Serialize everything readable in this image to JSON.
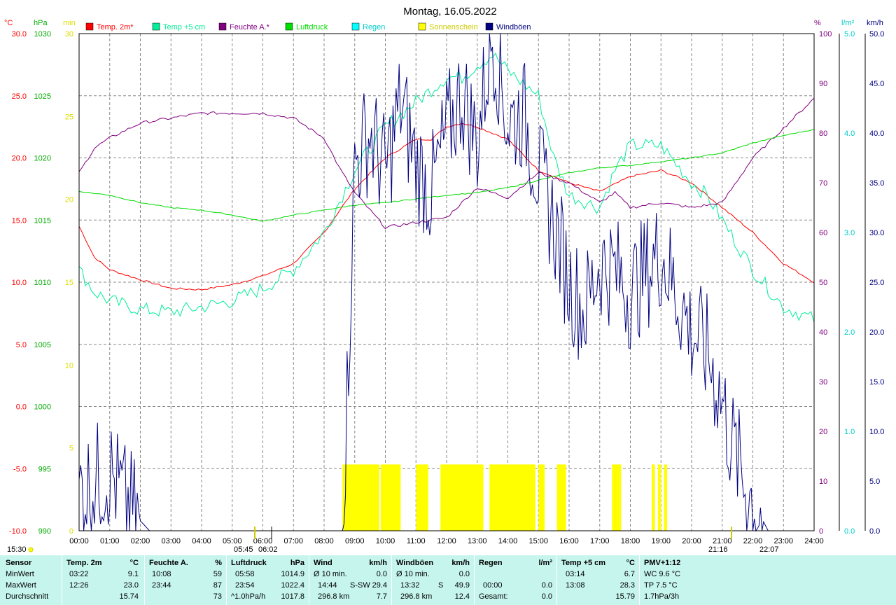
{
  "title": "Montag, 16.05.2022",
  "legend": [
    {
      "label": "Temp. 2m*",
      "color": "#ff0000"
    },
    {
      "label": "Temp +5 cm",
      "color": "#00ee99"
    },
    {
      "label": "Feuchte A.*",
      "color": "#800080"
    },
    {
      "label": "Luftdruck",
      "color": "#00dd00"
    },
    {
      "label": "Regen",
      "color": "#00ffff"
    },
    {
      "label": "Sonnenschein",
      "color": "#ffff00"
    },
    {
      "label": "Windböen",
      "color": "#000080"
    }
  ],
  "axes": {
    "temp": {
      "unit": "°C",
      "ticks": [
        "30.0",
        "25.0",
        "20.0",
        "15.0",
        "10.0",
        "5.0",
        "0.0",
        "-5.0",
        "-10.0"
      ],
      "color": "#ff0000"
    },
    "pressure": {
      "unit": "hPa",
      "ticks": [
        "1030",
        "1025",
        "1020",
        "1015",
        "1010",
        "1005",
        "1000",
        "995",
        "990"
      ],
      "color": "#00aa00"
    },
    "sunshine": {
      "unit": "min",
      "ticks": [
        "30",
        "25",
        "20",
        "15",
        "10",
        "5",
        "0"
      ],
      "color": "#dddd00"
    },
    "humidity": {
      "unit": "%",
      "ticks": [
        "100",
        "90",
        "80",
        "70",
        "60",
        "50",
        "40",
        "30",
        "20",
        "10",
        "0"
      ],
      "color": "#800080"
    },
    "rain": {
      "unit": "l/m²",
      "ticks": [
        "5.0",
        "4.0",
        "3.0",
        "2.0",
        "1.0",
        "0.0"
      ],
      "color": "#00cccc"
    },
    "wind": {
      "unit": "km/h",
      "ticks": [
        "50.0",
        "45.0",
        "40.0",
        "35.0",
        "30.0",
        "25.0",
        "20.0",
        "15.0",
        "10.0",
        "5.0",
        "0.0"
      ],
      "color": "#000080"
    },
    "time_ticks": [
      "00:00",
      "01:00",
      "02:00",
      "03:00",
      "04:00",
      "05:00",
      "06:00",
      "07:00",
      "08:00",
      "09:00",
      "10:00",
      "11:00",
      "12:00",
      "13:00",
      "14:00",
      "15:00",
      "16:00",
      "17:00",
      "18:00",
      "19:00",
      "20:00",
      "21:00",
      "22:00",
      "23:00",
      "24:00"
    ]
  },
  "markers": {
    "left_time": "15:30",
    "sunrise": "05:45",
    "sunrise_b": "06:02",
    "sunset_a": "21:16",
    "sunset_b": "22:07"
  },
  "chart_data": {
    "type": "line",
    "x_unit": "hour",
    "xlim": [
      0,
      24
    ],
    "series": [
      {
        "name": "Temp. 2m*",
        "axis": "temp",
        "color": "#ff0000",
        "points": [
          [
            0,
            14.5
          ],
          [
            0.5,
            12.0
          ],
          [
            1,
            11.0
          ],
          [
            2,
            10.2
          ],
          [
            3,
            9.5
          ],
          [
            4,
            9.4
          ],
          [
            5,
            9.8
          ],
          [
            6,
            10.5
          ],
          [
            7,
            11.5
          ],
          [
            8,
            14.0
          ],
          [
            9,
            17.5
          ],
          [
            10,
            20.0
          ],
          [
            11,
            21.5
          ],
          [
            11.5,
            21.5
          ],
          [
            12,
            22.5
          ],
          [
            12.5,
            22.8
          ],
          [
            13,
            22.5
          ],
          [
            14,
            21.5
          ],
          [
            15,
            19.0
          ],
          [
            16,
            18.0
          ],
          [
            17,
            17.3
          ],
          [
            18,
            18.5
          ],
          [
            19,
            19.0
          ],
          [
            20,
            18.0
          ],
          [
            21,
            16.0
          ],
          [
            22,
            14.0
          ],
          [
            23,
            11.5
          ],
          [
            24,
            10.0
          ]
        ]
      },
      {
        "name": "Temp +5 cm",
        "axis": "temp",
        "color": "#00ee99",
        "points": [
          [
            0,
            11.0
          ],
          [
            0.5,
            9.2
          ],
          [
            1,
            8.5
          ],
          [
            2,
            7.8
          ],
          [
            3,
            7.6
          ],
          [
            4,
            8.0
          ],
          [
            5,
            8.5
          ],
          [
            6,
            9.5
          ],
          [
            7,
            11.0
          ],
          [
            8,
            14.0
          ],
          [
            9,
            19.0
          ],
          [
            10,
            22.5
          ],
          [
            11,
            24.5
          ],
          [
            11.5,
            25.5
          ],
          [
            12,
            26.5
          ],
          [
            12.5,
            26.5
          ],
          [
            13,
            27.5
          ],
          [
            13.5,
            28.3
          ],
          [
            14,
            27.0
          ],
          [
            15,
            25.0
          ],
          [
            15.5,
            20.0
          ],
          [
            16,
            17.0
          ],
          [
            17,
            16.0
          ],
          [
            17.5,
            19.0
          ],
          [
            18,
            21.0
          ],
          [
            19,
            21.0
          ],
          [
            20,
            18.0
          ],
          [
            20.5,
            17.0
          ],
          [
            21,
            15.0
          ],
          [
            22,
            11.0
          ],
          [
            23,
            8.0
          ],
          [
            24,
            7.0
          ]
        ]
      },
      {
        "name": "Feuchte A.*",
        "axis": "humidity",
        "color": "#800080",
        "points": [
          [
            0,
            72
          ],
          [
            0.5,
            77
          ],
          [
            1,
            79
          ],
          [
            2,
            82
          ],
          [
            3,
            83
          ],
          [
            4,
            84
          ],
          [
            5,
            84
          ],
          [
            6,
            84
          ],
          [
            7,
            83
          ],
          [
            8,
            79
          ],
          [
            8.5,
            73
          ],
          [
            9,
            68
          ],
          [
            10,
            61
          ],
          [
            11,
            62
          ],
          [
            12,
            63
          ],
          [
            13,
            69
          ],
          [
            14,
            67
          ],
          [
            15,
            72
          ],
          [
            16,
            70
          ],
          [
            17,
            66
          ],
          [
            17.5,
            68
          ],
          [
            18,
            65
          ],
          [
            19,
            66
          ],
          [
            20,
            65
          ],
          [
            21,
            66
          ],
          [
            22,
            75
          ],
          [
            23,
            81
          ],
          [
            24,
            87
          ]
        ]
      },
      {
        "name": "Luftdruck",
        "axis": "pressure",
        "color": "#00dd00",
        "points": [
          [
            0,
            1017.3
          ],
          [
            1,
            1017.0
          ],
          [
            2,
            1016.4
          ],
          [
            3,
            1016.0
          ],
          [
            4,
            1015.8
          ],
          [
            5,
            1015.4
          ],
          [
            6,
            1014.9
          ],
          [
            7,
            1015.4
          ],
          [
            8,
            1015.8
          ],
          [
            9,
            1016.2
          ],
          [
            10,
            1016.4
          ],
          [
            11,
            1016.7
          ],
          [
            12,
            1017.0
          ],
          [
            13,
            1017.2
          ],
          [
            14,
            1017.6
          ],
          [
            15,
            1018.2
          ],
          [
            16,
            1018.8
          ],
          [
            17,
            1019.2
          ],
          [
            18,
            1019.4
          ],
          [
            19,
            1019.7
          ],
          [
            20,
            1020.0
          ],
          [
            21,
            1020.4
          ],
          [
            22,
            1021.2
          ],
          [
            23,
            1021.8
          ],
          [
            24,
            1022.3
          ]
        ]
      },
      {
        "name": "Windböen",
        "axis": "wind",
        "color": "#000080",
        "points": [
          [
            0,
            4
          ],
          [
            0.5,
            5
          ],
          [
            1,
            6
          ],
          [
            1.5,
            3
          ],
          [
            2,
            1
          ],
          [
            2.3,
            0
          ],
          [
            8.6,
            0
          ],
          [
            8.8,
            18
          ],
          [
            9,
            37
          ],
          [
            9.5,
            40
          ],
          [
            10,
            36
          ],
          [
            10.5,
            43
          ],
          [
            11,
            37
          ],
          [
            11.5,
            34
          ],
          [
            12,
            40
          ],
          [
            12.5,
            44
          ],
          [
            13,
            39
          ],
          [
            13.3,
            46
          ],
          [
            13.5,
            50
          ],
          [
            14,
            41
          ],
          [
            14.5,
            42
          ],
          [
            15,
            36
          ],
          [
            15.5,
            31
          ],
          [
            16,
            25
          ],
          [
            16.5,
            22
          ],
          [
            17,
            27
          ],
          [
            17.5,
            26
          ],
          [
            18,
            24
          ],
          [
            18.5,
            26
          ],
          [
            19,
            28
          ],
          [
            19.5,
            24
          ],
          [
            20,
            20
          ],
          [
            20.5,
            18
          ],
          [
            21,
            13
          ],
          [
            21.3,
            9
          ],
          [
            21.7,
            5
          ],
          [
            22,
            3
          ],
          [
            22.5,
            0
          ],
          [
            24,
            0
          ]
        ]
      },
      {
        "name": "Sonnenschein",
        "axis": "sunshine",
        "color": "#ffff00",
        "bars": [
          [
            8.6,
            9.8
          ],
          [
            9.85,
            10.5
          ],
          [
            11.0,
            11.4
          ],
          [
            11.8,
            13.2
          ],
          [
            13.4,
            14.9
          ],
          [
            15.0,
            15.2
          ],
          [
            15.6,
            15.9
          ],
          [
            17.4,
            17.7
          ],
          [
            18.7,
            18.8
          ],
          [
            18.9,
            19.0
          ],
          [
            19.1,
            19.2
          ]
        ],
        "bar_value": 4
      }
    ]
  },
  "stats": {
    "sensor": {
      "title": "Sensor",
      "rows": [
        "MinWert",
        "MaxWert",
        "Durchschnitt"
      ]
    },
    "temp2m": {
      "title": "Temp. 2m",
      "unit": "°C",
      "rows": [
        [
          "03:22",
          "9.1"
        ],
        [
          "12:26",
          "23.0"
        ],
        [
          "",
          "15.74"
        ]
      ]
    },
    "feuchte": {
      "title": "Feuchte A.",
      "unit": "%",
      "rows": [
        [
          "10:08",
          "59"
        ],
        [
          "23:44",
          "87"
        ],
        [
          "",
          "73"
        ]
      ]
    },
    "luftdruck": {
      "title": "Luftdruck",
      "unit": "hPa",
      "rows": [
        [
          "05:58",
          "1014.9"
        ],
        [
          "23:54",
          "1022.4"
        ],
        [
          "^1.0hPa/h",
          "1017.8"
        ]
      ]
    },
    "wind": {
      "title": "Wind",
      "unit": "km/h",
      "rows": [
        [
          "Ø 10 min.",
          "",
          "0.0"
        ],
        [
          "14:44",
          "S-SW",
          "29.4"
        ],
        [
          "296.8 km",
          "",
          "7.7"
        ]
      ]
    },
    "windboen": {
      "title": "Windböen",
      "unit": "km/h",
      "rows": [
        [
          "Ø 10 min.",
          "",
          "0.0"
        ],
        [
          "13:32",
          "S",
          "49.9"
        ],
        [
          "296.8 km",
          "",
          "12.4"
        ]
      ]
    },
    "regen": {
      "title": "Regen",
      "unit": "l/m²",
      "rows": [
        [
          "",
          ""
        ],
        [
          "00:00",
          "0.0"
        ],
        [
          "Gesamt:",
          "0.0"
        ]
      ],
      "first_value": "0.0"
    },
    "temp5cm": {
      "title": "Temp +5 cm",
      "unit": "°C",
      "rows": [
        [
          "03:14",
          "6.7"
        ],
        [
          "13:08",
          "28.3"
        ],
        [
          "",
          "15.79"
        ]
      ]
    },
    "pmv": {
      "title": "PMV+1:12",
      "rows": [
        "WC 9.6 °C",
        "TP 7.5 °C",
        "1.7hPa/3h"
      ]
    }
  }
}
